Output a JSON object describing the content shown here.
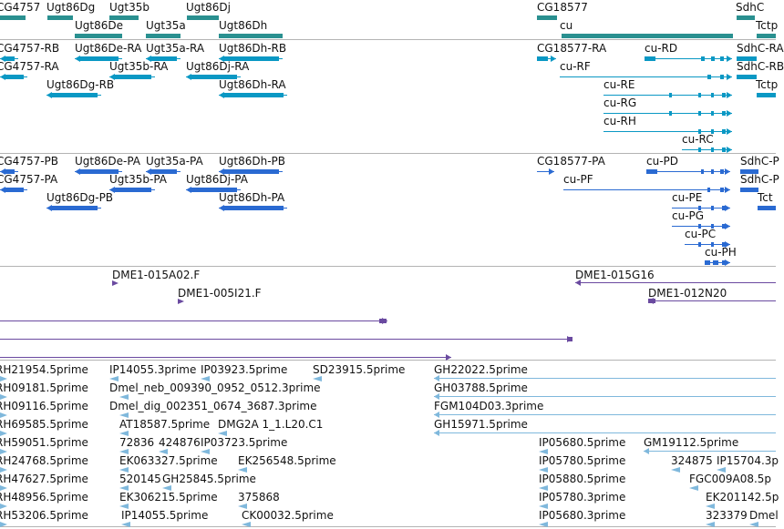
{
  "colors": {
    "gene": "#2a9090",
    "transcript_rna": "#0a98c4",
    "transcript_protein": "#2a6ad2",
    "clone": "#6a4aa0",
    "est": "#7fb8dc",
    "separator": "#b3b3b3"
  },
  "tracks": {
    "genes": [
      "CG4757",
      "Ugt86Dg",
      "Ugt35b",
      "Ugt86De",
      "Ugt35a",
      "Ugt86Dj",
      "Ugt86Dh",
      "CG18577",
      "cu",
      "SdhC",
      "Tctp"
    ],
    "rna": [
      "CG4757-RB",
      "Ugt86De-RA",
      "Ugt35a-RA",
      "Ugt86Dh-RB",
      "CG4757-RA",
      "Ugt35b-RA",
      "Ugt86Dj-RA",
      "Ugt86Dg-RB",
      "Ugt86Dh-RA",
      "CG18577-RA",
      "cu-RD",
      "SdhC-RA",
      "cu-RF",
      "SdhC-RB",
      "Tctp",
      "cu-RE",
      "cu-RG",
      "cu-RH",
      "cu-RC"
    ],
    "protein": [
      "CG4757-PB",
      "Ugt86De-PA",
      "Ugt35a-PA",
      "Ugt86Dh-PB",
      "CG4757-PA",
      "Ugt35b-PA",
      "Ugt86Dj-PA",
      "Ugt86Dg-PB",
      "Ugt86Dh-PA",
      "CG18577-PA",
      "cu-PD",
      "SdhC-P",
      "cu-PF",
      "SdhC-P",
      "Tct",
      "cu-PE",
      "cu-PG",
      "cu-PC",
      "cu-PH"
    ],
    "clones": [
      "DME1-015A02.F",
      "DME1-005I21.F",
      "DME1-015G16",
      "DME1-012N20"
    ],
    "ests": [
      "RH21954.5prime",
      "IP14055.3prime",
      "IP03923.5prime",
      "SD23915.5prime",
      "GH22022.5prime",
      "RH09181.5prime",
      "Dmel_neb_009390_0952_0512.3prime",
      "GH03788.5prime",
      "RH09116.5prime",
      "Dmel_dig_002351_0674_3687.3prime",
      "FGM104D03.3prime",
      "RH69585.5prime",
      "AT18587.5prime",
      "DMG2A 1_1.L20.C1",
      "GH15971.5prime",
      "RH59051.5prime",
      "72836",
      "424876",
      "IP03723.5prime",
      "IP05680.5prime",
      "GM19112.5prime",
      "RH24768.5prime",
      "EK063327.5prime",
      "EK256548.5prime",
      "IP05780.5prime",
      "324875",
      "IP15704.3p",
      "RH47627.5prime",
      "520145",
      "GH25845.5prime",
      "IP05880.5prime",
      "FGC009A08.5p",
      "RH48956.5prime",
      "EK306215.5prime",
      "375868",
      "IP05780.3prime",
      "EK201142.5p",
      "RH53206.5prime",
      "IP14055.5prime",
      "CK00032.5prime",
      "IP05680.3prime",
      "323379",
      "Dmel"
    ]
  }
}
